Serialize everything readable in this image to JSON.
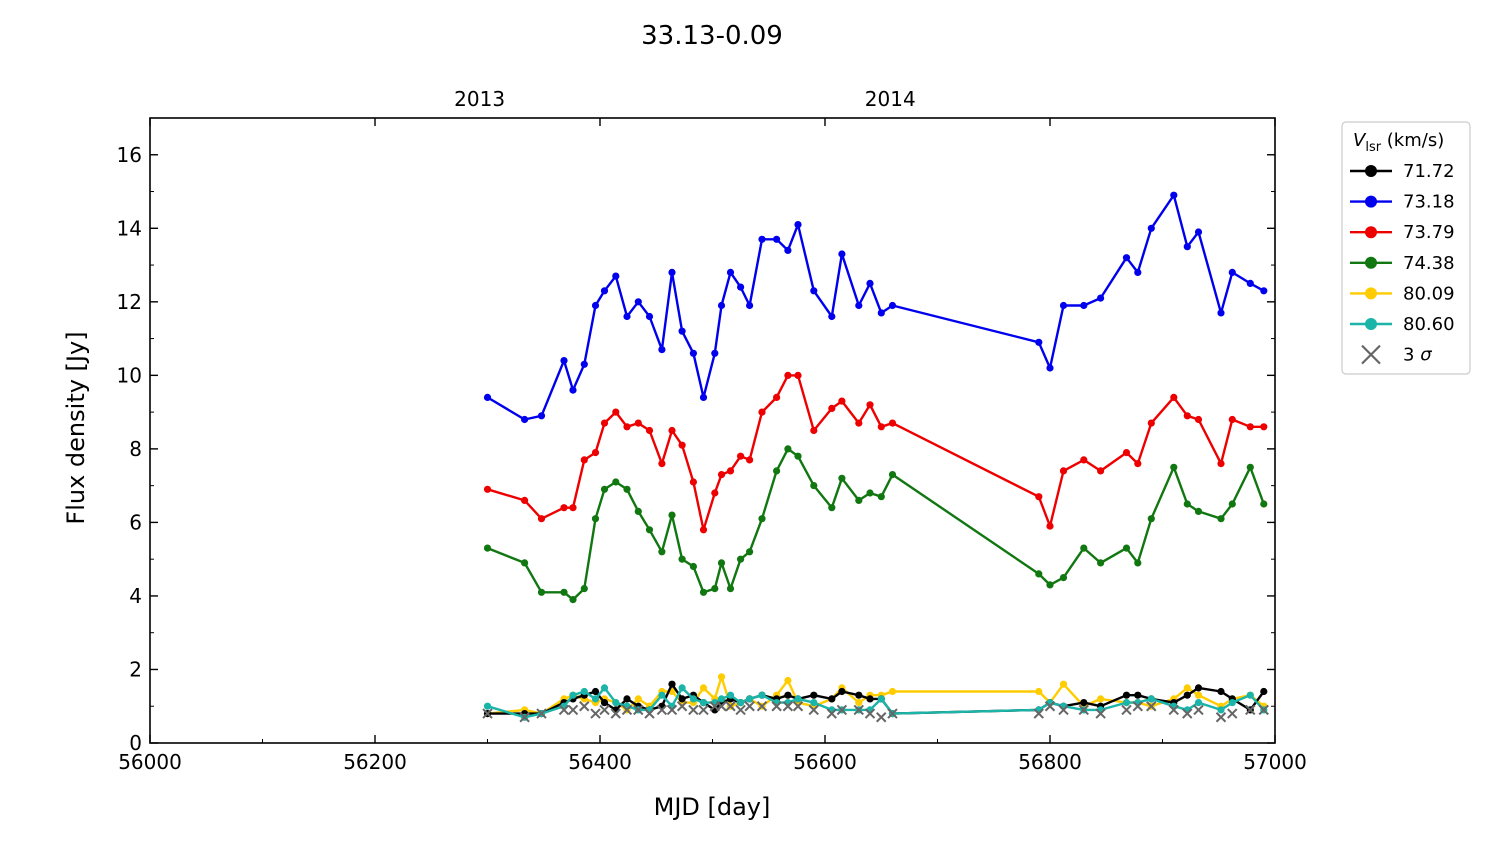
{
  "chart_data": {
    "type": "line",
    "title": "33.13-0.09",
    "xlabel": "MJD [day]",
    "ylabel": "Flux density [Jy]",
    "xlim": [
      56000,
      57000
    ],
    "ylim": [
      0,
      17
    ],
    "x_ticks": [
      56000,
      56200,
      56400,
      56600,
      56800,
      57000
    ],
    "y_ticks": [
      0,
      2,
      4,
      6,
      8,
      10,
      12,
      14,
      16
    ],
    "top_axis": {
      "ticks": [
        {
          "label": "2013",
          "x": 56293
        },
        {
          "label": "2014",
          "x": 56658
        }
      ]
    },
    "legend": {
      "title_main": "V",
      "title_sub": "lsr",
      "title_unit": " (km/s)",
      "placement": "outside-right-top"
    },
    "threshold_label_prefix": "3 ",
    "threshold_label_symbol": "σ",
    "series": [
      {
        "name": "71.72",
        "color": "#000000",
        "x": [
          56300,
          56333,
          56348,
          56368,
          56376,
          56386,
          56396,
          56404,
          56414,
          56424,
          56434,
          56444,
          56455,
          56464,
          56473,
          56483,
          56492,
          56502,
          56508,
          56516,
          56525,
          56533,
          56544,
          56557,
          56567,
          56576,
          56590,
          56606,
          56615,
          56630,
          56640,
          56650,
          56660,
          56790,
          56800,
          56812,
          56830,
          56845,
          56868,
          56878,
          56890,
          56910,
          56922,
          56932,
          56952,
          56962,
          56978,
          56990
        ],
        "y": [
          0.8,
          0.8,
          0.8,
          1.1,
          1.2,
          1.3,
          1.4,
          1.1,
          0.9,
          1.2,
          1.0,
          0.9,
          1.0,
          1.6,
          1.2,
          1.3,
          1.1,
          0.9,
          1.1,
          1.2,
          1.1,
          1.2,
          1.3,
          1.2,
          1.3,
          1.2,
          1.3,
          1.2,
          1.4,
          1.3,
          1.2,
          1.2,
          0.8,
          0.9,
          1.1,
          1.0,
          1.1,
          1.0,
          1.3,
          1.3,
          1.2,
          1.1,
          1.3,
          1.5,
          1.4,
          1.2,
          0.9,
          1.4
        ]
      },
      {
        "name": "73.18",
        "color": "#0000ee",
        "x": [
          56300,
          56333,
          56348,
          56368,
          56376,
          56386,
          56396,
          56404,
          56414,
          56424,
          56434,
          56444,
          56455,
          56464,
          56473,
          56483,
          56492,
          56502,
          56508,
          56516,
          56525,
          56533,
          56544,
          56557,
          56567,
          56576,
          56590,
          56606,
          56615,
          56630,
          56640,
          56650,
          56660,
          56790,
          56800,
          56812,
          56830,
          56845,
          56868,
          56878,
          56890,
          56910,
          56922,
          56932,
          56952,
          56962,
          56978,
          56990
        ],
        "y": [
          9.4,
          8.8,
          8.9,
          10.4,
          9.6,
          10.3,
          11.9,
          12.3,
          12.7,
          11.6,
          12.0,
          11.6,
          10.7,
          12.8,
          11.2,
          10.6,
          9.4,
          10.6,
          11.9,
          12.8,
          12.4,
          11.9,
          13.7,
          13.7,
          13.4,
          14.1,
          12.3,
          11.6,
          13.3,
          11.9,
          12.5,
          11.7,
          11.9,
          10.9,
          10.2,
          11.9,
          11.9,
          12.1,
          13.2,
          12.8,
          14.0,
          14.9,
          13.5,
          13.9,
          11.7,
          12.8,
          12.5,
          12.3
        ]
      },
      {
        "name": "73.79",
        "color": "#ee0000",
        "x": [
          56300,
          56333,
          56348,
          56368,
          56376,
          56386,
          56396,
          56404,
          56414,
          56424,
          56434,
          56444,
          56455,
          56464,
          56473,
          56483,
          56492,
          56502,
          56508,
          56516,
          56525,
          56533,
          56544,
          56557,
          56567,
          56576,
          56590,
          56606,
          56615,
          56630,
          56640,
          56650,
          56660,
          56790,
          56800,
          56812,
          56830,
          56845,
          56868,
          56878,
          56890,
          56910,
          56922,
          56932,
          56952,
          56962,
          56978,
          56990
        ],
        "y": [
          6.9,
          6.6,
          6.1,
          6.4,
          6.4,
          7.7,
          7.9,
          8.7,
          9.0,
          8.6,
          8.7,
          8.5,
          7.6,
          8.5,
          8.1,
          7.1,
          5.8,
          6.8,
          7.3,
          7.4,
          7.8,
          7.7,
          9.0,
          9.4,
          10.0,
          10.0,
          8.5,
          9.1,
          9.3,
          8.7,
          9.2,
          8.6,
          8.7,
          6.7,
          5.9,
          7.4,
          7.7,
          7.4,
          7.9,
          7.6,
          8.7,
          9.4,
          8.9,
          8.8,
          7.6,
          8.8,
          8.6,
          8.6
        ]
      },
      {
        "name": "74.38",
        "color": "#117711",
        "x": [
          56300,
          56333,
          56348,
          56368,
          56376,
          56386,
          56396,
          56404,
          56414,
          56424,
          56434,
          56444,
          56455,
          56464,
          56473,
          56483,
          56492,
          56502,
          56508,
          56516,
          56525,
          56533,
          56544,
          56557,
          56567,
          56576,
          56590,
          56606,
          56615,
          56630,
          56640,
          56650,
          56660,
          56790,
          56800,
          56812,
          56830,
          56845,
          56868,
          56878,
          56890,
          56910,
          56922,
          56932,
          56952,
          56962,
          56978,
          56990
        ],
        "y": [
          5.3,
          4.9,
          4.1,
          4.1,
          3.9,
          4.2,
          6.1,
          6.9,
          7.1,
          6.9,
          6.3,
          5.8,
          5.2,
          6.2,
          5.0,
          4.8,
          4.1,
          4.2,
          4.9,
          4.2,
          5.0,
          5.2,
          6.1,
          7.4,
          8.0,
          7.8,
          7.0,
          6.4,
          7.2,
          6.6,
          6.8,
          6.7,
          7.3,
          4.6,
          4.3,
          4.5,
          5.3,
          4.9,
          5.3,
          4.9,
          6.1,
          7.5,
          6.5,
          6.3,
          6.1,
          6.5,
          7.5,
          6.5
        ]
      },
      {
        "name": "80.09",
        "color": "#ffcc00",
        "x": [
          56300,
          56333,
          56348,
          56368,
          56376,
          56386,
          56396,
          56404,
          56414,
          56424,
          56434,
          56444,
          56455,
          56464,
          56473,
          56483,
          56492,
          56502,
          56508,
          56516,
          56525,
          56533,
          56544,
          56557,
          56567,
          56576,
          56590,
          56606,
          56615,
          56630,
          56640,
          56650,
          56660,
          56790,
          56800,
          56812,
          56830,
          56845,
          56868,
          56878,
          56890,
          56910,
          56922,
          56932,
          56952,
          56962,
          56978,
          56990
        ],
        "y": [
          0.8,
          0.9,
          0.8,
          1.2,
          1.3,
          1.2,
          1.1,
          1.2,
          1.1,
          0.9,
          1.2,
          1.0,
          1.4,
          1.4,
          1.1,
          1.1,
          1.5,
          1.2,
          1.8,
          1.0,
          1.1,
          1.2,
          1.0,
          1.3,
          1.7,
          1.1,
          1.0,
          1.2,
          1.5,
          1.1,
          1.3,
          1.3,
          1.4,
          1.4,
          1.1,
          1.6,
          1.0,
          1.2,
          1.1,
          1.1,
          1.0,
          1.2,
          1.5,
          1.3,
          1.0,
          1.2,
          1.3,
          1.0
        ]
      },
      {
        "name": "80.60",
        "color": "#1ab4a8",
        "x": [
          56300,
          56333,
          56348,
          56368,
          56376,
          56386,
          56396,
          56404,
          56414,
          56424,
          56434,
          56444,
          56455,
          56464,
          56473,
          56483,
          56492,
          56502,
          56508,
          56516,
          56525,
          56533,
          56544,
          56557,
          56567,
          56576,
          56590,
          56606,
          56615,
          56630,
          56640,
          56650,
          56660,
          56790,
          56800,
          56812,
          56830,
          56845,
          56868,
          56878,
          56890,
          56910,
          56922,
          56932,
          56952,
          56962,
          56978,
          56990
        ],
        "y": [
          1.0,
          0.7,
          0.8,
          1.0,
          1.3,
          1.4,
          1.2,
          1.5,
          1.1,
          1.0,
          0.9,
          0.9,
          1.3,
          1.0,
          1.5,
          1.2,
          1.1,
          1.1,
          1.2,
          1.3,
          1.1,
          1.2,
          1.3,
          1.1,
          1.1,
          1.2,
          1.1,
          0.9,
          0.9,
          0.9,
          0.9,
          1.2,
          0.8,
          0.9,
          1.1,
          1.0,
          0.9,
          0.9,
          1.1,
          1.1,
          1.2,
          1.0,
          0.9,
          1.1,
          0.9,
          1.1,
          1.3,
          0.9
        ]
      }
    ],
    "threshold_3sigma": {
      "color": "#666666",
      "x": [
        56300,
        56333,
        56348,
        56368,
        56376,
        56386,
        56396,
        56404,
        56414,
        56424,
        56434,
        56444,
        56455,
        56464,
        56473,
        56483,
        56492,
        56502,
        56508,
        56516,
        56525,
        56533,
        56544,
        56557,
        56567,
        56576,
        56590,
        56606,
        56615,
        56630,
        56640,
        56650,
        56660,
        56790,
        56800,
        56812,
        56830,
        56845,
        56868,
        56878,
        56890,
        56910,
        56922,
        56932,
        56952,
        56962,
        56978,
        56990
      ],
      "y": [
        0.8,
        0.7,
        0.8,
        0.9,
        0.9,
        1.0,
        0.8,
        0.9,
        0.8,
        0.9,
        0.9,
        0.8,
        0.9,
        0.9,
        1.0,
        0.9,
        0.9,
        1.0,
        1.0,
        1.0,
        0.9,
        1.0,
        1.0,
        1.0,
        1.0,
        1.0,
        0.9,
        0.8,
        0.9,
        0.9,
        0.8,
        0.7,
        0.8,
        0.8,
        1.0,
        0.9,
        0.9,
        0.8,
        0.9,
        1.0,
        1.0,
        0.9,
        0.8,
        0.9,
        0.7,
        0.8,
        0.9,
        0.9
      ]
    }
  }
}
